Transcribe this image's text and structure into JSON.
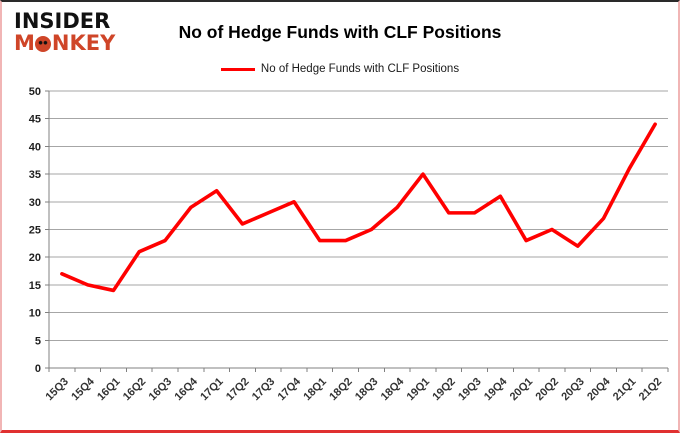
{
  "branding": {
    "logo_line1": "INSIDER",
    "logo_line2_prefix": "M",
    "logo_line2_suffix": "NKEY",
    "logo_color": "#cf4528"
  },
  "title": "No of Hedge Funds with CLF Positions",
  "legend": {
    "label": "No of Hedge Funds with CLF Positions",
    "line_color": "#ff0000"
  },
  "chart_data": {
    "type": "line",
    "title": "No of Hedge Funds with CLF Positions",
    "categories": [
      "15Q3",
      "15Q4",
      "16Q1",
      "16Q2",
      "16Q3",
      "16Q4",
      "17Q1",
      "17Q2",
      "17Q3",
      "17Q4",
      "18Q1",
      "18Q2",
      "18Q3",
      "18Q4",
      "19Q1",
      "19Q2",
      "19Q3",
      "19Q4",
      "20Q1",
      "20Q2",
      "20Q3",
      "20Q4",
      "21Q1",
      "21Q2"
    ],
    "series": [
      {
        "name": "No of Hedge Funds with CLF Positions",
        "color": "#ff0000",
        "values": [
          17,
          15,
          14,
          21,
          23,
          29,
          32,
          26,
          28,
          30,
          23,
          23,
          25,
          29,
          35,
          28,
          28,
          31,
          23,
          25,
          22,
          27,
          36,
          44
        ]
      }
    ],
    "xlabel": "",
    "ylabel": "",
    "ylim": [
      0,
      50
    ],
    "ytick_step": 5,
    "grid": true,
    "legend_position": "top",
    "gridline_color": "#a6a6a6",
    "axis_color": "#808080"
  }
}
